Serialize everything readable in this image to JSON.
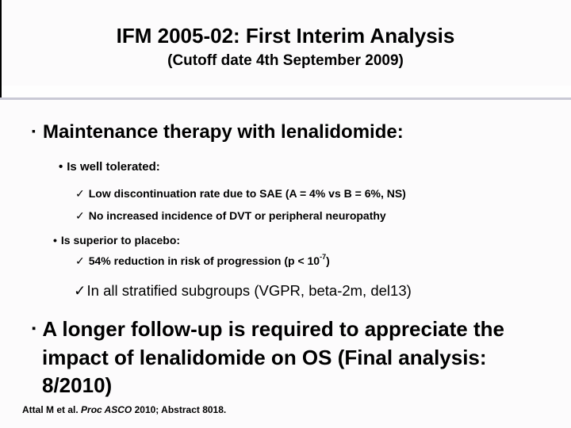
{
  "slide": {
    "title": "IFM 2005-02: First Interim Analysis",
    "subtitle": "(Cutoff date 4th September 2009)",
    "glyphs": {
      "square_bullet": "▪",
      "dot_bullet": "•",
      "check_mark": "✓"
    },
    "colors": {
      "text": "#000000",
      "divider_line": "#c9c9d5",
      "left_edge_line": "#000000",
      "background": "#fcfbfc"
    },
    "content": {
      "maintenance_heading": "Maintenance therapy with lenalidomide:",
      "tolerated_subheading": "Is well tolerated:",
      "check_sae": "Low discontinuation rate due to SAE (A = 4% vs B = 6%, NS)",
      "check_dvt": "No increased incidence of DVT or peripheral neuropathy",
      "superior_subheading": "Is superior to placebo:",
      "check_progression_pre": "54% reduction in risk of progression (p < 10",
      "check_progression_sup": "-7",
      "check_progression_post": ")",
      "check_subgroups": "In all stratified subgroups (VGPR, beta-2m, del13)",
      "followup_lines": [
        "A longer follow-up is required to appreciate the",
        "impact of lenalidomide on OS (Final analysis:",
        "8/2010)"
      ]
    },
    "footer": {
      "pre": "Attal M et al. ",
      "italic": "Proc ASCO",
      "post": " 2010; Abstract 8018."
    }
  }
}
